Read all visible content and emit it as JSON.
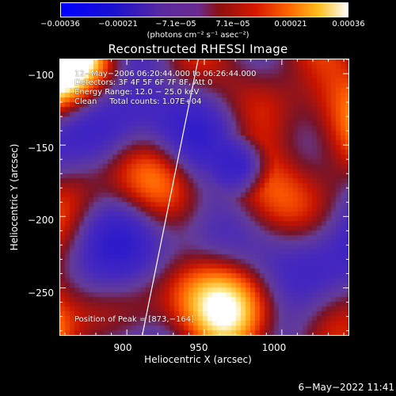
{
  "colorbar": {
    "ticks": [
      "−0.00036",
      "−0.00021",
      "−7.1e−05",
      "7.1e−05",
      "0.00021",
      "0.00036"
    ],
    "units": "(photons cm⁻² s⁻¹ asec⁻²)"
  },
  "title": "Reconstructed RHESSI Image",
  "annotations": {
    "time_range": "12−May−2006 06:20:44.000 to 06:26:44.000",
    "detectors": "Detectors: 3F 4F 5F 6F 7F 8F, Att 0",
    "energy": "Energy Range: 12.0 − 25.0 keV",
    "clean": "Clean     Total counts: 1.07E+04",
    "peak": "Position of Peak = [873,−164]"
  },
  "axes": {
    "xlabel": "Heliocentric X (arcsec)",
    "ylabel": "Heliocentric Y (arcsec)",
    "xticks": [
      "900",
      "950",
      "1000"
    ],
    "yticks": [
      "−100",
      "−150",
      "−200",
      "−250"
    ]
  },
  "footer": {
    "timestamp": "6−May−2022 11:41"
  },
  "chart_data": {
    "type": "heatmap",
    "title": "Reconstructed RHESSI Image",
    "xlabel": "Heliocentric X (arcsec)",
    "ylabel": "Heliocentric Y (arcsec)",
    "xlim": [
      857,
      1043
    ],
    "ylim": [
      -283,
      -90
    ],
    "xticks": [
      900,
      950,
      1000
    ],
    "yticks": [
      -100,
      -150,
      -200,
      -250
    ],
    "colorbar_range": [
      -0.00036,
      0.00036
    ],
    "colorbar_ticks": [
      -0.00036,
      -0.00021,
      -7.1e-05,
      7.1e-05,
      0.00021,
      0.00036
    ],
    "colormap": "blue-purple-red-orange-yellow-white",
    "peak_position": [
      873,
      -164
    ],
    "limb_line_points": [
      [
        910,
        -283
      ],
      [
        946,
        -90
      ]
    ]
  },
  "colors": {
    "background": "#000000",
    "foreground": "#ffffff"
  }
}
